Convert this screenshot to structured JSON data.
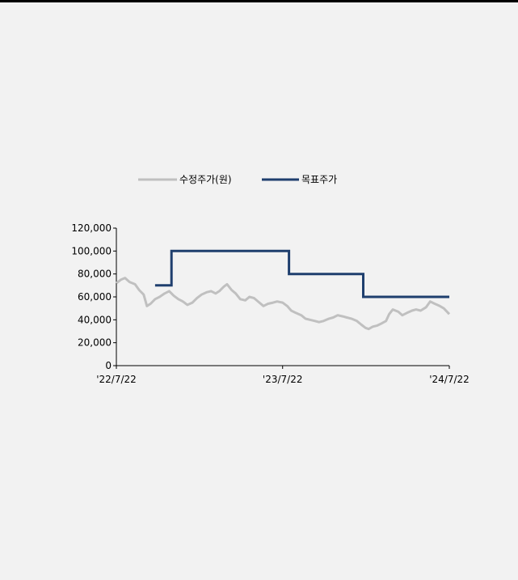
{
  "chart_data": {
    "type": "line",
    "x_range": [
      "2022-07-22",
      "2024-07-22"
    ],
    "x_tick_labels": [
      "'22/7/22",
      "'23/7/22",
      "'24/7/22"
    ],
    "y_range": [
      0,
      120000
    ],
    "y_tick_labels": [
      "0",
      "20,000",
      "40,000",
      "60,000",
      "80,000",
      "100,000",
      "120,000"
    ],
    "y_ticks": [
      0,
      20000,
      40000,
      60000,
      80000,
      100000,
      120000
    ],
    "legend_position": "top",
    "grid": false,
    "series": [
      {
        "name": "수정주가(원)",
        "color": "#c0c0c0",
        "points": [
          [
            "2022-07-22",
            72000
          ],
          [
            "2022-08-01",
            75000
          ],
          [
            "2022-08-10",
            76500
          ],
          [
            "2022-08-20",
            73000
          ],
          [
            "2022-09-01",
            71000
          ],
          [
            "2022-09-10",
            66000
          ],
          [
            "2022-09-20",
            62000
          ],
          [
            "2022-09-27",
            52000
          ],
          [
            "2022-10-05",
            54000
          ],
          [
            "2022-10-15",
            58000
          ],
          [
            "2022-10-25",
            60000
          ],
          [
            "2022-11-05",
            63000
          ],
          [
            "2022-11-15",
            65000
          ],
          [
            "2022-11-25",
            61000
          ],
          [
            "2022-12-05",
            58000
          ],
          [
            "2022-12-15",
            56000
          ],
          [
            "2022-12-25",
            53000
          ],
          [
            "2023-01-05",
            55000
          ],
          [
            "2023-01-15",
            59000
          ],
          [
            "2023-01-25",
            62000
          ],
          [
            "2023-02-05",
            64000
          ],
          [
            "2023-02-15",
            65000
          ],
          [
            "2023-02-25",
            63000
          ],
          [
            "2023-03-05",
            65000
          ],
          [
            "2023-03-15",
            69000
          ],
          [
            "2023-03-22",
            71000
          ],
          [
            "2023-04-01",
            66000
          ],
          [
            "2023-04-10",
            63000
          ],
          [
            "2023-04-20",
            58000
          ],
          [
            "2023-05-01",
            57000
          ],
          [
            "2023-05-10",
            60000
          ],
          [
            "2023-05-20",
            59000
          ],
          [
            "2023-06-01",
            55000
          ],
          [
            "2023-06-10",
            52000
          ],
          [
            "2023-06-20",
            54000
          ],
          [
            "2023-07-01",
            55000
          ],
          [
            "2023-07-10",
            56000
          ],
          [
            "2023-07-22",
            55000
          ],
          [
            "2023-08-01",
            52000
          ],
          [
            "2023-08-10",
            48000
          ],
          [
            "2023-08-20",
            46000
          ],
          [
            "2023-09-01",
            44000
          ],
          [
            "2023-09-10",
            41000
          ],
          [
            "2023-09-20",
            40000
          ],
          [
            "2023-10-01",
            39000
          ],
          [
            "2023-10-10",
            38000
          ],
          [
            "2023-10-20",
            39000
          ],
          [
            "2023-11-01",
            41000
          ],
          [
            "2023-11-10",
            42000
          ],
          [
            "2023-11-20",
            44000
          ],
          [
            "2023-12-01",
            43000
          ],
          [
            "2023-12-10",
            42000
          ],
          [
            "2023-12-20",
            41000
          ],
          [
            "2024-01-01",
            39000
          ],
          [
            "2024-01-10",
            36000
          ],
          [
            "2024-01-20",
            33000
          ],
          [
            "2024-01-27",
            32000
          ],
          [
            "2024-02-05",
            34000
          ],
          [
            "2024-02-15",
            35000
          ],
          [
            "2024-02-25",
            37000
          ],
          [
            "2024-03-05",
            39000
          ],
          [
            "2024-03-12",
            45000
          ],
          [
            "2024-03-20",
            49000
          ],
          [
            "2024-04-01",
            47000
          ],
          [
            "2024-04-10",
            44000
          ],
          [
            "2024-04-20",
            46000
          ],
          [
            "2024-05-01",
            48000
          ],
          [
            "2024-05-10",
            49000
          ],
          [
            "2024-05-20",
            48000
          ],
          [
            "2024-06-01",
            51000
          ],
          [
            "2024-06-10",
            56000
          ],
          [
            "2024-06-20",
            54000
          ],
          [
            "2024-07-01",
            52000
          ],
          [
            "2024-07-10",
            50000
          ],
          [
            "2024-07-22",
            45000
          ]
        ]
      },
      {
        "name": "목표주가",
        "color": "#1f3f6e",
        "points": [
          [
            "2022-10-15",
            70000
          ],
          [
            "2022-11-20",
            70000
          ],
          [
            "2022-11-20",
            100000
          ],
          [
            "2023-08-05",
            100000
          ],
          [
            "2023-08-05",
            80000
          ],
          [
            "2024-01-15",
            80000
          ],
          [
            "2024-01-15",
            60000
          ],
          [
            "2024-07-22",
            60000
          ]
        ]
      }
    ]
  }
}
